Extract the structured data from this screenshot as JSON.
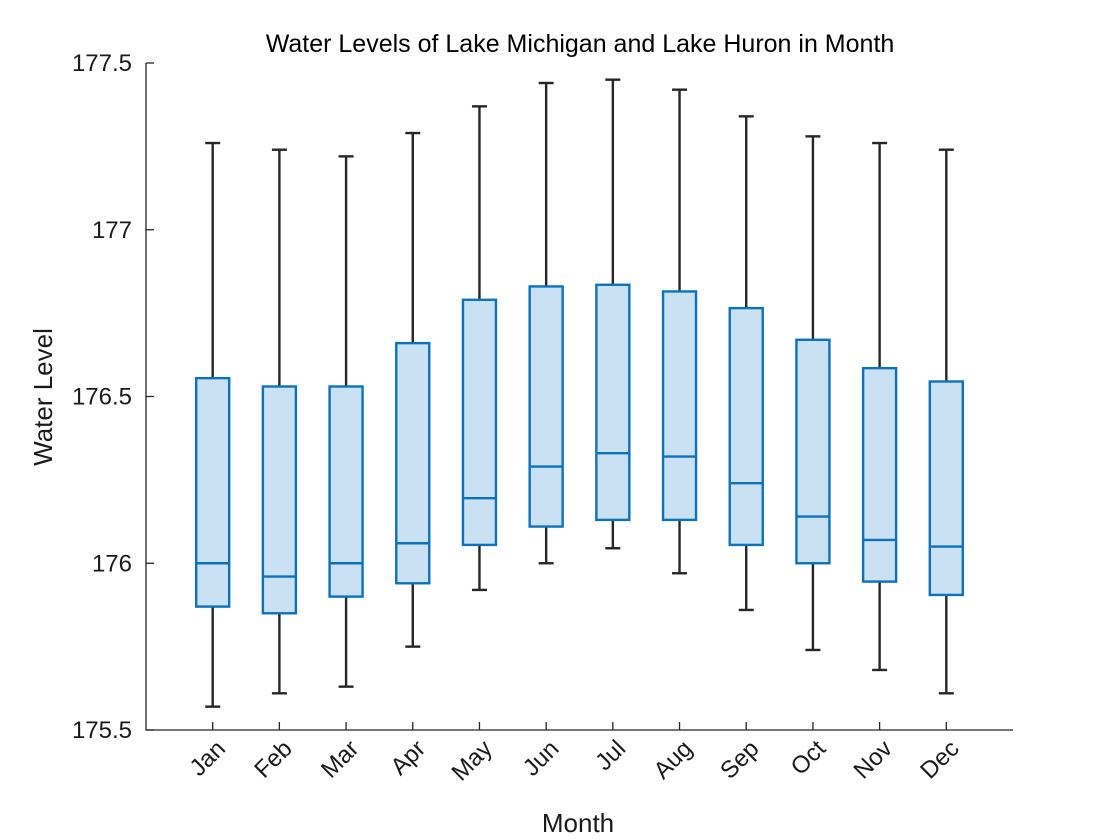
{
  "colors": {
    "box_fill": "#c9e1f2",
    "box_edge": "#0c72bd",
    "whisker": "#262626",
    "axis": "#262626"
  },
  "chart_data": {
    "type": "box",
    "title": "Water Levels of Lake Michigan and Lake Huron in Month",
    "xlabel": "Month",
    "ylabel": "Water Level",
    "ylim": [
      175.5,
      177.5
    ],
    "yticks": [
      175.5,
      176,
      176.5,
      177,
      177.5
    ],
    "ytick_labels": [
      "175.5",
      "176",
      "176.5",
      "177",
      "177.5"
    ],
    "grid": false,
    "categories": [
      "Jan",
      "Feb",
      "Mar",
      "Apr",
      "May",
      "Jun",
      "Jul",
      "Aug",
      "Sep",
      "Oct",
      "Nov",
      "Dec"
    ],
    "boxes": [
      {
        "label": "Jan",
        "min": 175.57,
        "q1": 175.87,
        "median": 176.0,
        "q3": 176.555,
        "max": 177.26
      },
      {
        "label": "Feb",
        "min": 175.61,
        "q1": 175.85,
        "median": 175.96,
        "q3": 176.53,
        "max": 177.24
      },
      {
        "label": "Mar",
        "min": 175.63,
        "q1": 175.9,
        "median": 176.0,
        "q3": 176.53,
        "max": 177.22
      },
      {
        "label": "Apr",
        "min": 175.75,
        "q1": 175.94,
        "median": 176.06,
        "q3": 176.66,
        "max": 177.29
      },
      {
        "label": "May",
        "min": 175.92,
        "q1": 176.055,
        "median": 176.195,
        "q3": 176.79,
        "max": 177.37
      },
      {
        "label": "Jun",
        "min": 176.0,
        "q1": 176.11,
        "median": 176.29,
        "q3": 176.83,
        "max": 177.44
      },
      {
        "label": "Jul",
        "min": 176.045,
        "q1": 176.13,
        "median": 176.33,
        "q3": 176.835,
        "max": 177.45
      },
      {
        "label": "Aug",
        "min": 175.97,
        "q1": 176.13,
        "median": 176.32,
        "q3": 176.815,
        "max": 177.42
      },
      {
        "label": "Sep",
        "min": 175.86,
        "q1": 176.055,
        "median": 176.24,
        "q3": 176.765,
        "max": 177.34
      },
      {
        "label": "Oct",
        "min": 175.74,
        "q1": 176.0,
        "median": 176.14,
        "q3": 176.67,
        "max": 177.28
      },
      {
        "label": "Nov",
        "min": 175.68,
        "q1": 175.945,
        "median": 176.07,
        "q3": 176.585,
        "max": 177.26
      },
      {
        "label": "Dec",
        "min": 175.61,
        "q1": 175.905,
        "median": 176.05,
        "q3": 176.545,
        "max": 177.24
      }
    ]
  }
}
